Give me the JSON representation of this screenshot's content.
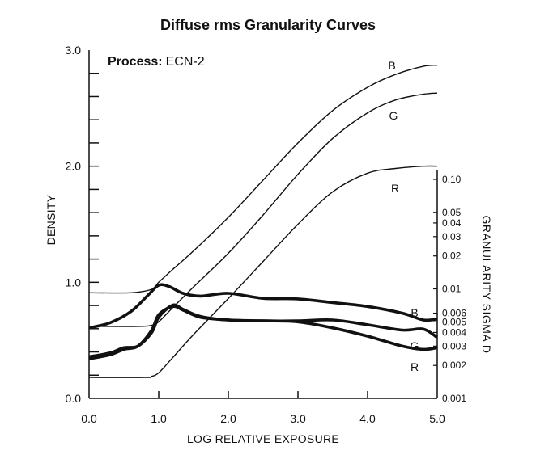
{
  "chart_data": {
    "type": "line",
    "title": "Diffuse rms Granularity Curves",
    "annotation": {
      "label": "Process:",
      "value": "ECN-2"
    },
    "xlabel": "LOG RELATIVE EXPOSURE",
    "ylabel": "DENSITY",
    "y2label": "GRANULARITY SIGMA D",
    "xlim": [
      0,
      5
    ],
    "ylim": [
      0,
      3
    ],
    "y2_scale": "log",
    "y2lim": [
      0.001,
      0.1
    ],
    "x_ticks": [
      "0.0",
      "1.0",
      "2.0",
      "3.0",
      "4.0",
      "5.0"
    ],
    "y_ticks": [
      "0.0",
      "1.0",
      "2.0",
      "3.0"
    ],
    "y2_ticks": [
      {
        "label": "0.001",
        "value": 0.001
      },
      {
        "label": "0.002",
        "value": 0.002
      },
      {
        "label": "0.003",
        "value": 0.003
      },
      {
        "label": "0.004",
        "value": 0.004
      },
      {
        "label": "0.005",
        "value": 0.005
      },
      {
        "label": "0.006",
        "value": 0.006
      },
      {
        "label": "0.01",
        "value": 0.01
      },
      {
        "label": "0.02",
        "value": 0.02
      },
      {
        "label": "0.03",
        "value": 0.03
      },
      {
        "label": "0.04",
        "value": 0.04
      },
      {
        "label": "0.05",
        "value": 0.05
      },
      {
        "label": "0.10",
        "value": 0.1
      }
    ],
    "grid": false,
    "density_series": [
      {
        "name": "B",
        "x": [
          0,
          0.6,
          0.9,
          1.0,
          1.2,
          1.5,
          2.0,
          2.5,
          3.0,
          3.5,
          4.0,
          4.4,
          4.8,
          5.0
        ],
        "y": [
          0.91,
          0.91,
          0.94,
          1.0,
          1.11,
          1.27,
          1.56,
          1.88,
          2.2,
          2.48,
          2.68,
          2.79,
          2.86,
          2.87
        ]
      },
      {
        "name": "G",
        "x": [
          0,
          0.7,
          0.9,
          1.0,
          1.2,
          1.5,
          2.0,
          2.5,
          3.0,
          3.5,
          4.0,
          4.4,
          4.8,
          5.0
        ],
        "y": [
          0.62,
          0.62,
          0.63,
          0.66,
          0.78,
          0.96,
          1.25,
          1.58,
          1.93,
          2.24,
          2.46,
          2.57,
          2.62,
          2.63
        ]
      },
      {
        "name": "R",
        "x": [
          0,
          0.8,
          0.9,
          1.0,
          1.2,
          1.5,
          2.0,
          2.5,
          3.0,
          3.5,
          4.0,
          4.4,
          4.8,
          5.0
        ],
        "y": [
          0.18,
          0.18,
          0.19,
          0.22,
          0.35,
          0.55,
          0.86,
          1.18,
          1.5,
          1.78,
          1.94,
          1.98,
          2.0,
          2.0
        ]
      }
    ],
    "granularity_series": [
      {
        "name": "B",
        "x": [
          0,
          0.3,
          0.6,
          0.85,
          1.0,
          1.15,
          1.35,
          1.6,
          2.0,
          2.5,
          3.0,
          3.5,
          4.0,
          4.5,
          4.8,
          5.0
        ],
        "y": [
          0.0044,
          0.0049,
          0.0062,
          0.0088,
          0.0108,
          0.0105,
          0.0091,
          0.0086,
          0.0091,
          0.0082,
          0.0081,
          0.0075,
          0.0069,
          0.006,
          0.0052,
          0.0053
        ]
      },
      {
        "name": "G",
        "x": [
          0,
          0.3,
          0.5,
          0.7,
          0.9,
          1.0,
          1.2,
          1.35,
          1.6,
          2.0,
          2.5,
          3.0,
          3.5,
          4.0,
          4.5,
          4.8,
          5.0
        ],
        "y": [
          0.0024,
          0.0026,
          0.0029,
          0.003,
          0.004,
          0.0055,
          0.0071,
          0.0065,
          0.0056,
          0.0052,
          0.0051,
          0.0051,
          0.0052,
          0.0047,
          0.0042,
          0.0043,
          0.0036
        ]
      },
      {
        "name": "R",
        "x": [
          0,
          0.3,
          0.5,
          0.7,
          0.9,
          1.0,
          1.2,
          1.35,
          1.6,
          2.0,
          2.5,
          3.0,
          3.5,
          4.0,
          4.5,
          4.8,
          5.0
        ],
        "y": [
          0.0023,
          0.0025,
          0.0028,
          0.003,
          0.0042,
          0.0058,
          0.0069,
          0.0064,
          0.0055,
          0.0052,
          0.0051,
          0.005,
          0.0044,
          0.0037,
          0.003,
          0.0028,
          0.0029
        ]
      }
    ],
    "series_labels": [
      {
        "name": "B",
        "curve": "density"
      },
      {
        "name": "G",
        "curve": "density"
      },
      {
        "name": "R",
        "curve": "density"
      },
      {
        "name": "B",
        "curve": "granularity"
      },
      {
        "name": "G",
        "curve": "granularity"
      },
      {
        "name": "R",
        "curve": "granularity"
      }
    ]
  }
}
